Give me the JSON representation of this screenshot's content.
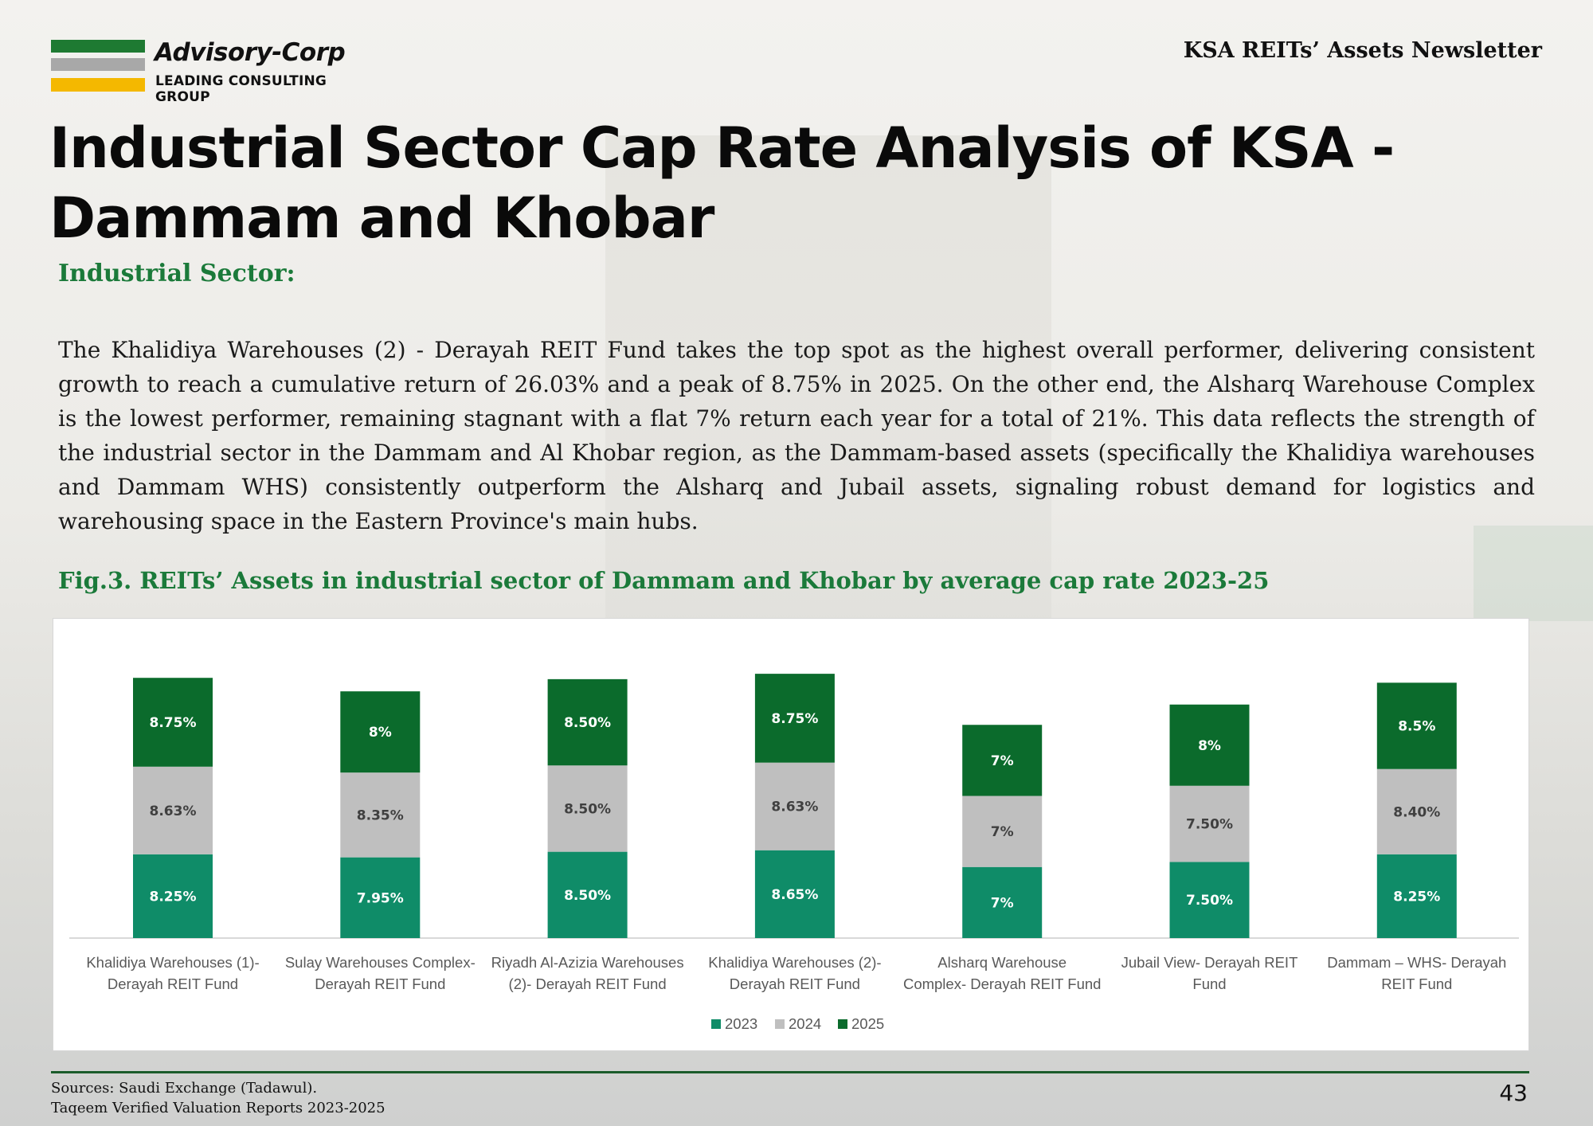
{
  "header": {
    "brand_name": "Advisory-Corp",
    "brand_tagline": "LEADING CONSULTING GROUP",
    "newsletter_title": "KSA REITs’ Assets Newsletter"
  },
  "page": {
    "title": "Industrial Sector Cap Rate Analysis of KSA - Dammam and Khobar",
    "section_heading": "Industrial Sector:",
    "body": "The Khalidiya Warehouses (2) - Derayah REIT Fund takes the top spot as the highest overall performer, delivering consistent growth to reach a cumulative return of 26.03% and a peak of 8.75% in 2025. On the other end, the Alsharq Warehouse Complex is the lowest performer, remaining stagnant with a flat 7% return each year for a total of 21%. This data reflects the strength of the industrial sector in the Dammam and Al Khobar region, as the Dammam-based assets (specifically the Khalidiya warehouses and Dammam WHS) consistently outperform the Alsharq and Jubail assets, signaling robust demand for logistics and warehousing space in the Eastern Province's main hubs.",
    "figure_caption": "Fig.3. REITs’ Assets in industrial sector of Dammam and Khobar by average cap rate 2023-25"
  },
  "chart_data": {
    "type": "bar",
    "stacked": true,
    "title": "",
    "xlabel": "",
    "ylabel": "",
    "grid": false,
    "legend_position": "bottom-center",
    "categories": [
      [
        "Khalidiya Warehouses (1)-",
        "Derayah REIT Fund"
      ],
      [
        "Sulay Warehouses Complex-",
        "Derayah REIT Fund"
      ],
      [
        "Riyadh Al-Azizia Warehouses",
        "(2)- Derayah REIT Fund"
      ],
      [
        "Khalidiya Warehouses (2)-",
        "Derayah REIT Fund"
      ],
      [
        "Alsharq Warehouse",
        "Complex- Derayah REIT Fund"
      ],
      [
        "Jubail View- Derayah REIT",
        "Fund"
      ],
      [
        "Dammam – WHS- Derayah",
        "REIT Fund"
      ]
    ],
    "series": [
      {
        "name": "2023",
        "color": "#0f8c68",
        "label_color": "#ffffff",
        "values": [
          8.25,
          7.95,
          8.5,
          8.65,
          7,
          7.5,
          8.25
        ],
        "labels": [
          "8.25%",
          "7.95%",
          "8.50%",
          "8.65%",
          "7%",
          "7.50%",
          "8.25%"
        ]
      },
      {
        "name": "2024",
        "color": "#bfbfbf",
        "label_color": "#404040",
        "values": [
          8.63,
          8.35,
          8.5,
          8.63,
          7,
          7.5,
          8.4
        ],
        "labels": [
          "8.63%",
          "8.35%",
          "8.50%",
          "8.63%",
          "7%",
          "7.50%",
          "8.40%"
        ]
      },
      {
        "name": "2025",
        "color": "#0b6b2c",
        "label_color": "#ffffff",
        "values": [
          8.75,
          8,
          8.5,
          8.75,
          7,
          8,
          8.5
        ],
        "labels": [
          "8.75%",
          "8%",
          "8.50%",
          "8.75%",
          "7%",
          "8%",
          "8.5%"
        ]
      }
    ],
    "ylim": [
      0,
      28
    ]
  },
  "footer": {
    "sources": [
      "Sources: Saudi Exchange (Tadawul).",
      "Taqeem Verified Valuation Reports 2023-2025"
    ],
    "page_number": "43"
  }
}
